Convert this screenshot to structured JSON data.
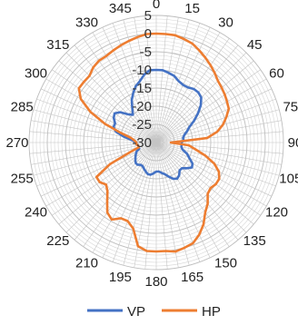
{
  "chart_data": {
    "type": "radar",
    "title": "",
    "angles": [
      "0",
      "5",
      "10",
      "15",
      "20",
      "25",
      "30",
      "35",
      "40",
      "45",
      "50",
      "55",
      "60",
      "65",
      "70",
      "75",
      "80",
      "85",
      "90",
      "95",
      "100",
      "105",
      "110",
      "115",
      "120",
      "125",
      "130",
      "135",
      "140",
      "145",
      "150",
      "155",
      "160",
      "165",
      "170",
      "175",
      "180",
      "185",
      "190",
      "195",
      "200",
      "205",
      "210",
      "215",
      "220",
      "225",
      "230",
      "235",
      "240",
      "245",
      "250",
      "255",
      "260",
      "265",
      "270",
      "275",
      "280",
      "285",
      "290",
      "295",
      "300",
      "305",
      "310",
      "315",
      "320",
      "325",
      "330",
      "335",
      "340",
      "345",
      "350",
      "355"
    ],
    "angle_labels": [
      "0",
      "15",
      "30",
      "45",
      "60",
      "75",
      "90",
      "105",
      "120",
      "135",
      "150",
      "165",
      "180",
      "195",
      "210",
      "225",
      "240",
      "255",
      "270",
      "285",
      "300",
      "315",
      "330",
      "345"
    ],
    "radial_ticks": [
      "5",
      "0",
      "-5",
      "-10",
      "-15",
      "-20",
      "-25",
      "-30"
    ],
    "rlim": [
      -30,
      5
    ],
    "series": [
      {
        "name": "VP",
        "color": "#4472C4",
        "values": [
          -10,
          -10,
          -10.5,
          -11,
          -12,
          -12.5,
          -12.5,
          -12,
          -12,
          -12.5,
          -14,
          -16,
          -18,
          -20,
          -21,
          -22,
          -22.5,
          -22.5,
          -23,
          -23,
          -23,
          -22.5,
          -21,
          -20,
          -18.5,
          -18,
          -19,
          -20,
          -20,
          -19,
          -18.5,
          -19,
          -20,
          -21,
          -21.5,
          -22,
          -22,
          -21.5,
          -21,
          -21,
          -21.5,
          -22,
          -22.5,
          -22.5,
          -22,
          -22,
          -22.5,
          -23,
          -23.5,
          -24,
          -25,
          -25,
          -25,
          -24.5,
          -24.5,
          -23.5,
          -21,
          -18.5,
          -17.5,
          -17.5,
          -16.5,
          -16,
          -17,
          -19,
          -20,
          -18.5,
          -16.5,
          -15,
          -13.5,
          -12.5,
          -11,
          -10
        ]
      },
      {
        "name": "HP",
        "color": "#ED7D31",
        "values": [
          0,
          0,
          0,
          -0.5,
          -1,
          -2,
          -3,
          -4,
          -5,
          -6,
          -6.5,
          -7,
          -7.5,
          -8,
          -9.5,
          -11,
          -13,
          -16,
          -26,
          -21,
          -19,
          -16,
          -13,
          -11,
          -10,
          -10,
          -10.5,
          -10,
          -8,
          -6.5,
          -4,
          -2,
          -0.5,
          0,
          0.5,
          0,
          0,
          0,
          -1,
          -5.5,
          -7,
          -7,
          -5.5,
          -6.5,
          -9,
          -11,
          -12,
          -11,
          -11,
          -16,
          -22.5,
          -25,
          -25,
          -24.5,
          -24.5,
          -24,
          -23,
          -20,
          -15,
          -10,
          -6,
          -4,
          -4,
          -4,
          -3,
          -2.5,
          -2.5,
          -2,
          -1.5,
          -1,
          -0.5,
          0
        ]
      }
    ],
    "legend": {
      "position": "bottom",
      "entries": [
        "VP",
        "HP"
      ]
    }
  }
}
